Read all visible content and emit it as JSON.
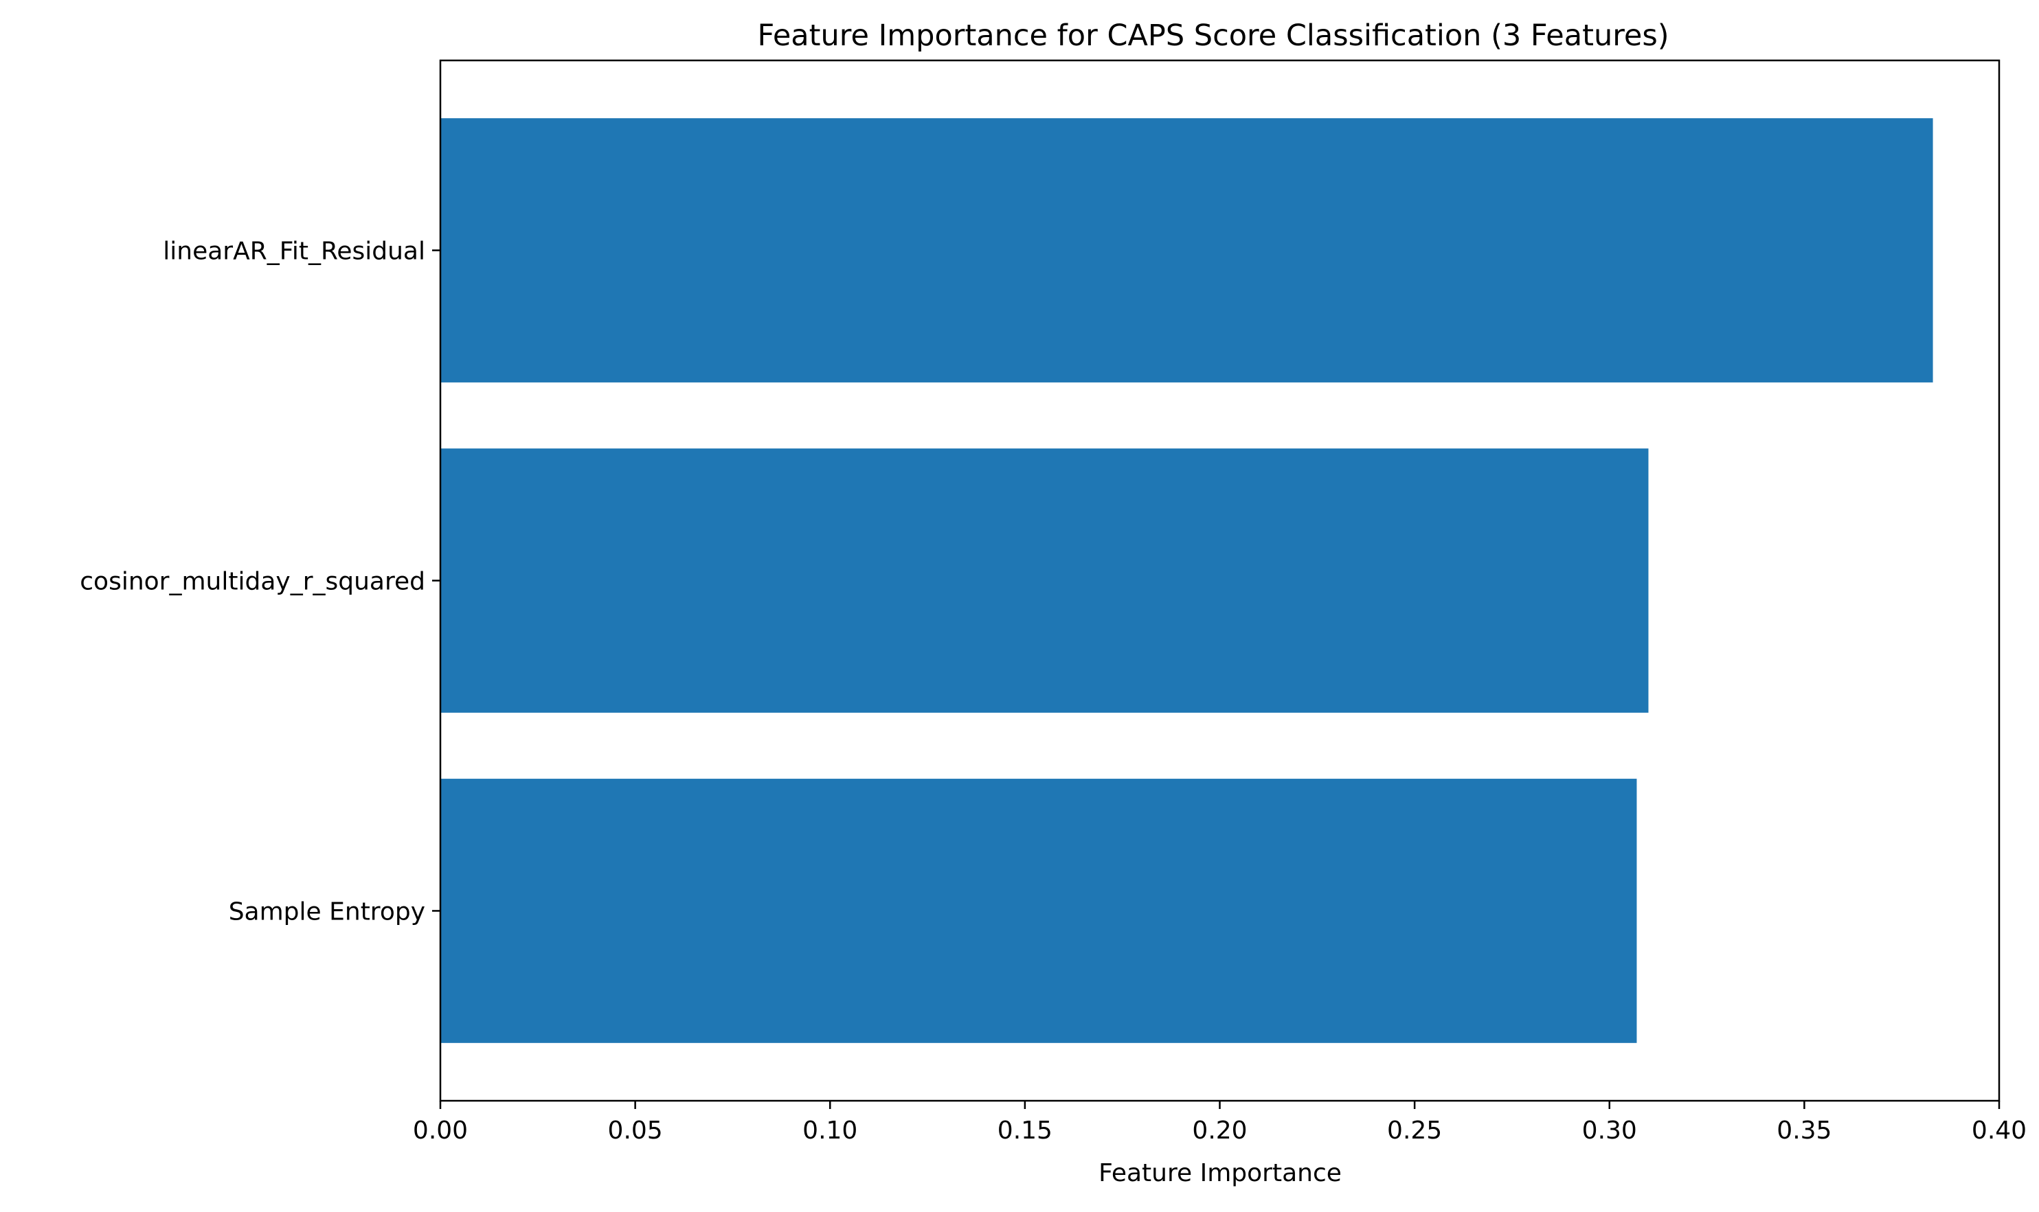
{
  "chart_data": {
    "type": "bar",
    "orientation": "horizontal",
    "title": "Feature Importance for CAPS Score Classification (3 Features)",
    "xlabel": "Feature Importance",
    "ylabel": "",
    "categories": [
      "linearAR_Fit_Residual",
      "cosinor_multiday_r_squared",
      "Sample Entropy"
    ],
    "values": [
      0.383,
      0.31,
      0.307
    ],
    "xlim": [
      0,
      0.4
    ],
    "xticks": [
      "0.00",
      "0.05",
      "0.10",
      "0.15",
      "0.20",
      "0.25",
      "0.30",
      "0.35",
      "0.40"
    ],
    "grid": false,
    "legend": "none",
    "bar_color": "#1f77b4"
  }
}
